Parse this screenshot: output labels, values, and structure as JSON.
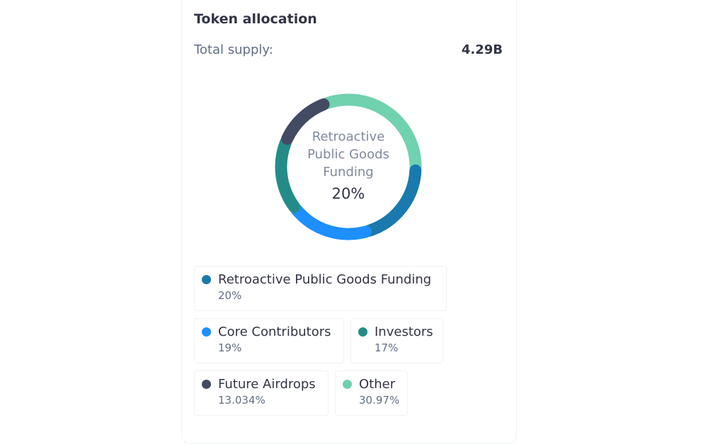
{
  "card": {
    "title": "Token allocation",
    "supply_label": "Total supply:",
    "supply_value": "4.29B"
  },
  "center": {
    "label": "Retroactive Public Goods Funding",
    "percent": "20%"
  },
  "legend": [
    {
      "name": "Retroactive Public Goods Funding",
      "percent": "20%"
    },
    {
      "name": "Core Contributors",
      "percent": "19%"
    },
    {
      "name": "Investors",
      "percent": "17%"
    },
    {
      "name": "Future Airdrops",
      "percent": "13.034%"
    },
    {
      "name": "Other",
      "percent": "30.97%"
    }
  ],
  "chart_data": {
    "type": "pie",
    "title": "Token allocation",
    "series": [
      {
        "name": "Retroactive Public Goods Funding",
        "value": 20,
        "color": "#1a79ad"
      },
      {
        "name": "Core Contributors",
        "value": 19,
        "color": "#1d8fff"
      },
      {
        "name": "Investors",
        "value": 17,
        "color": "#248c88"
      },
      {
        "name": "Future Airdrops",
        "value": 13.034,
        "color": "#434b62"
      },
      {
        "name": "Other",
        "value": 30.97,
        "color": "#70d2ae"
      }
    ],
    "order_clockwise_from_top": [
      "Other",
      "Retroactive Public Goods Funding",
      "Core Contributors",
      "Investors",
      "Future Airdrops"
    ],
    "highlighted": "Retroactive Public Goods Funding"
  }
}
